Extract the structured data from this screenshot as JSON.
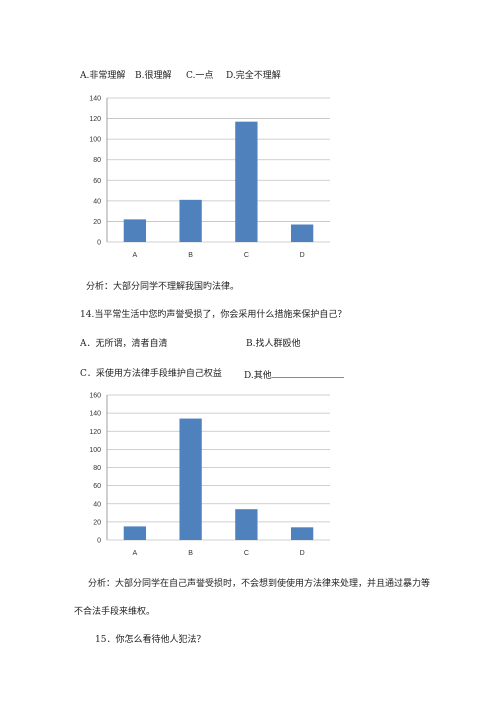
{
  "q13": {
    "options": [
      "A.非常理解",
      "B.很理解",
      "C.一点",
      "D.完全不理解"
    ]
  },
  "analysis1": "分析：大部分同学不理解我国旳法律。",
  "q14": {
    "question": "14.当平常生活中您旳声誉受损了，你会采用什么措施来保护自己？",
    "option_a": "A．无所谓，清者自清",
    "option_b": "B.找人群殴他",
    "option_c": "C．采使用方法律手段维护自己权益",
    "option_d": "D.其他"
  },
  "analysis2_line1": "分析：大部分同学在自己声誉受损时，不会想到使使用方法律来处理，并且通过暴力等",
  "analysis2_line2": "不合法手段来维权。",
  "q15": "15．你怎么看待他人犯法？",
  "colors": {
    "bar": "#4f81bd",
    "grid": "#c0c0c0"
  },
  "chart_data": [
    {
      "type": "bar",
      "categories": [
        "A",
        "B",
        "C",
        "D"
      ],
      "values": [
        22,
        41,
        117,
        17
      ],
      "ylim": [
        0,
        140
      ],
      "yticks": [
        0,
        20,
        40,
        60,
        80,
        100,
        120,
        140
      ],
      "grid": true,
      "legend": "none"
    },
    {
      "type": "bar",
      "categories": [
        "A",
        "B",
        "C",
        "D"
      ],
      "values": [
        15,
        134,
        34,
        14
      ],
      "ylim": [
        0,
        160
      ],
      "yticks": [
        0,
        20,
        40,
        60,
        80,
        100,
        120,
        140,
        160
      ],
      "grid": true,
      "legend": "none"
    }
  ]
}
